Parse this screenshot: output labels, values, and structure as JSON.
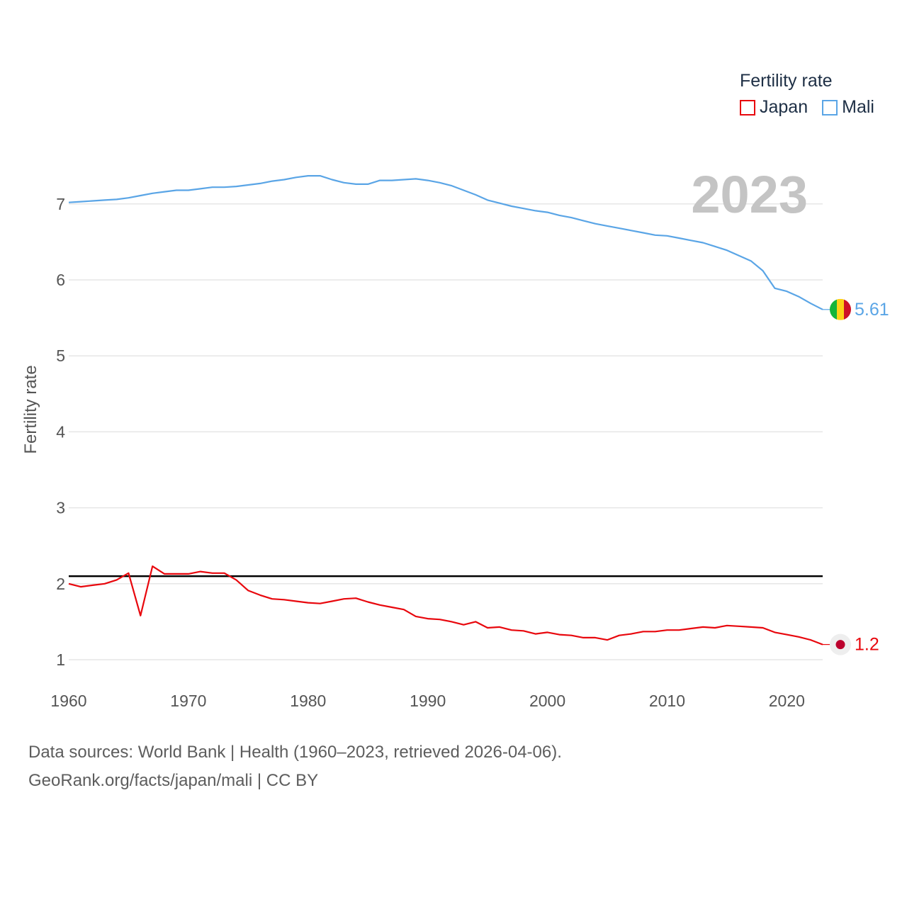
{
  "legend": {
    "title": "Fertility rate",
    "items": [
      {
        "label": "Japan",
        "color": "#e8070d"
      },
      {
        "label": "Mali",
        "color": "#5aa5e6"
      }
    ]
  },
  "year_badge": "2023",
  "footer": {
    "line1": "Data sources: World Bank | Health (1960–2023, retrieved 2026-04-06).",
    "line2": "GeoRank.org/facts/japan/mali | CC BY"
  },
  "chart_data": {
    "type": "line",
    "title": "",
    "xlabel": "",
    "ylabel": "Fertility rate",
    "xlim": [
      1960,
      2023
    ],
    "ylim": [
      0.85,
      7.65
    ],
    "x_ticks": [
      1960,
      1970,
      1980,
      1990,
      2000,
      2010,
      2020
    ],
    "y_ticks": [
      1,
      2,
      3,
      4,
      5,
      6,
      7
    ],
    "grid": true,
    "reference_line": {
      "y": 2.1,
      "color": "#000000"
    },
    "x": [
      1960,
      1961,
      1962,
      1963,
      1964,
      1965,
      1966,
      1967,
      1968,
      1969,
      1970,
      1971,
      1972,
      1973,
      1974,
      1975,
      1976,
      1977,
      1978,
      1979,
      1980,
      1981,
      1982,
      1983,
      1984,
      1985,
      1986,
      1987,
      1988,
      1989,
      1990,
      1991,
      1992,
      1993,
      1994,
      1995,
      1996,
      1997,
      1998,
      1999,
      2000,
      2001,
      2002,
      2003,
      2004,
      2005,
      2006,
      2007,
      2008,
      2009,
      2010,
      2011,
      2012,
      2013,
      2014,
      2015,
      2016,
      2017,
      2018,
      2019,
      2020,
      2021,
      2022,
      2023
    ],
    "series": [
      {
        "name": "Japan",
        "color": "#e8070d",
        "end_label": "1.2",
        "values": [
          2.0,
          1.96,
          1.98,
          2.0,
          2.05,
          2.14,
          1.58,
          2.23,
          2.13,
          2.13,
          2.13,
          2.16,
          2.14,
          2.14,
          2.05,
          1.91,
          1.85,
          1.8,
          1.79,
          1.77,
          1.75,
          1.74,
          1.77,
          1.8,
          1.81,
          1.76,
          1.72,
          1.69,
          1.66,
          1.57,
          1.54,
          1.53,
          1.5,
          1.46,
          1.5,
          1.42,
          1.43,
          1.39,
          1.38,
          1.34,
          1.36,
          1.33,
          1.32,
          1.29,
          1.29,
          1.26,
          1.32,
          1.34,
          1.37,
          1.37,
          1.39,
          1.39,
          1.41,
          1.43,
          1.42,
          1.45,
          1.44,
          1.43,
          1.42,
          1.36,
          1.33,
          1.3,
          1.26,
          1.2
        ]
      },
      {
        "name": "Mali",
        "color": "#5aa5e6",
        "end_label": "5.61",
        "values": [
          7.02,
          7.03,
          7.04,
          7.05,
          7.06,
          7.08,
          7.11,
          7.14,
          7.16,
          7.18,
          7.18,
          7.2,
          7.22,
          7.22,
          7.23,
          7.25,
          7.27,
          7.3,
          7.32,
          7.35,
          7.37,
          7.37,
          7.32,
          7.28,
          7.26,
          7.26,
          7.31,
          7.31,
          7.32,
          7.33,
          7.31,
          7.28,
          7.24,
          7.18,
          7.12,
          7.05,
          7.01,
          6.97,
          6.94,
          6.91,
          6.89,
          6.85,
          6.82,
          6.78,
          6.74,
          6.71,
          6.68,
          6.65,
          6.62,
          6.59,
          6.58,
          6.55,
          6.52,
          6.49,
          6.44,
          6.39,
          6.32,
          6.25,
          6.12,
          5.89,
          5.85,
          5.78,
          5.69,
          5.61
        ]
      }
    ]
  }
}
